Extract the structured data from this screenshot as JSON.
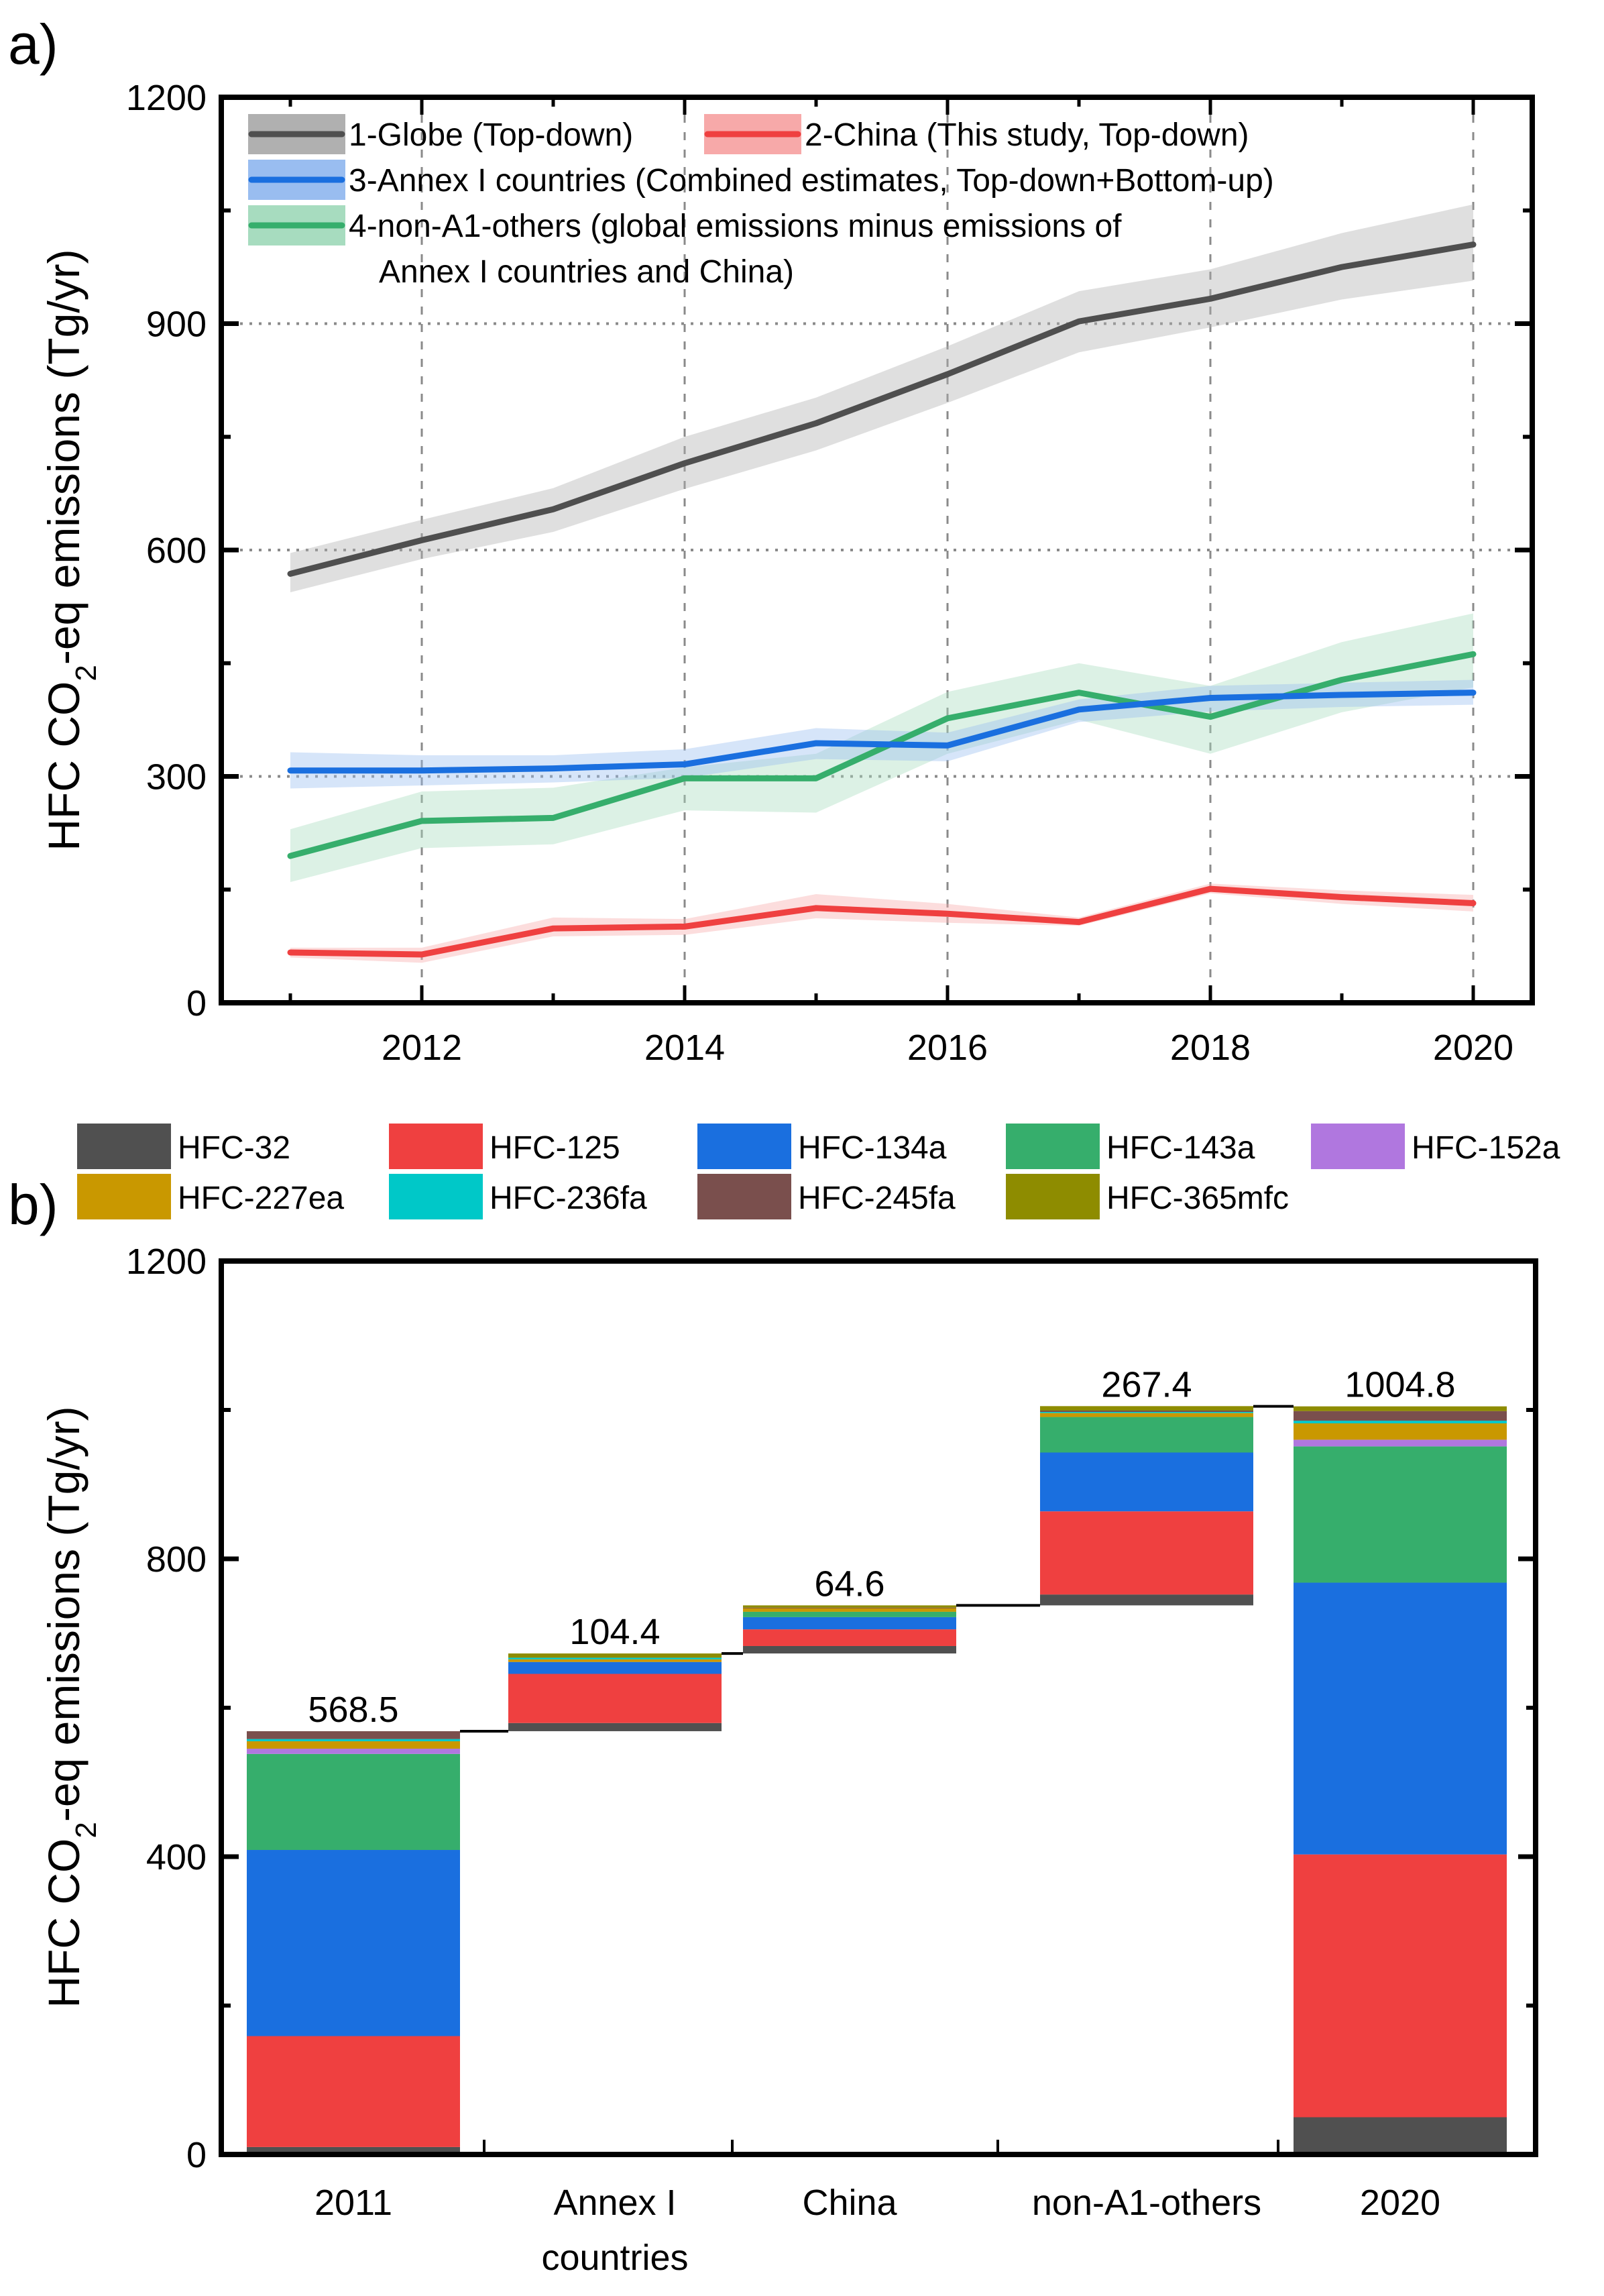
{
  "figure": {
    "panel_a_label": "a)",
    "panel_b_label": "b)"
  },
  "chart_data": [
    {
      "id": "panel_a",
      "type": "line",
      "title": "",
      "xlabel": "",
      "ylabel_parts": [
        "HFC CO",
        "2",
        "-eq emissions (Tg/yr)"
      ],
      "ylabel": "HFC CO2-eq emissions (Tg/yr)",
      "xlim": [
        2011,
        2020
      ],
      "ylim": [
        0,
        1200
      ],
      "x_ticks": [
        2012,
        2014,
        2016,
        2018,
        2020
      ],
      "x_minor_ticks": [
        2011,
        2012,
        2013,
        2014,
        2015,
        2016,
        2017,
        2018,
        2019,
        2020
      ],
      "y_ticks": [
        0,
        300,
        600,
        900,
        1200
      ],
      "y_minor_ticks": [
        150,
        450,
        750,
        1050
      ],
      "grid": true,
      "legend_position": "top-left",
      "x": [
        2011,
        2012,
        2013,
        2014,
        2015,
        2016,
        2017,
        2018,
        2019,
        2020
      ],
      "series": [
        {
          "name": "1-Globe (Top-down)",
          "color": "#4f4f4f",
          "band_color": "#b0b0b0",
          "values": [
            568.5,
            613,
            654,
            715,
            768,
            833,
            903,
            933,
            975,
            1004.8
          ],
          "lower": [
            544,
            588,
            624,
            681,
            732,
            795,
            862,
            895,
            932,
            957
          ],
          "upper": [
            596,
            640,
            682,
            750,
            802,
            870,
            943,
            972,
            1020,
            1058
          ]
        },
        {
          "name": "2-China (This study, Top-down)",
          "color": "#ef4040",
          "band_color": "#f7a9a9",
          "values": [
            66.7,
            64,
            98.5,
            101,
            125.5,
            118,
            107,
            151,
            140,
            132
          ],
          "lower": [
            60,
            53,
            88,
            90,
            112,
            106,
            102,
            145,
            131,
            121
          ],
          "upper": [
            73,
            73,
            113,
            111,
            144,
            131,
            113,
            158,
            149,
            143
          ]
        },
        {
          "name": "3-Annex I countries (Combined estimates, Top-down+Bottom-up)",
          "color": "#1a6fdf",
          "band_color": "#99bdf0",
          "values": [
            307.8,
            307.8,
            310.6,
            316,
            344,
            341,
            388.6,
            404,
            408,
            411
          ],
          "lower": [
            284,
            288,
            292,
            298,
            323,
            320,
            372,
            386,
            392,
            395
          ],
          "upper": [
            332,
            328,
            328,
            336,
            364,
            358,
            402,
            420,
            424,
            428
          ]
        },
        {
          "name": "4-non-A1-others (global emissions minus emissions of Annex I countries and China)",
          "name_line1": "4-non-A1-others (global emissions minus emissions of",
          "name_line2": "Annex I countries and China)",
          "color": "#36ae6c",
          "band_color": "#a7dcbf",
          "values": [
            194.6,
            241,
            245,
            297.5,
            297.5,
            377,
            411,
            379,
            428,
            462
          ],
          "lower": [
            160,
            205,
            210,
            255,
            252,
            330,
            375,
            330,
            385,
            418
          ],
          "upper": [
            230,
            280,
            285,
            312,
            330,
            412,
            450,
            420,
            478,
            516
          ]
        }
      ]
    },
    {
      "id": "panel_b",
      "type": "bar",
      "subtype": "stacked-waterfall",
      "title": "",
      "xlabel": "",
      "ylabel_parts": [
        "HFC CO",
        "2",
        "-eq emissions (Tg/yr)"
      ],
      "ylabel": "HFC CO2-eq emissions (Tg/yr)",
      "ylim": [
        0,
        1200
      ],
      "y_ticks": [
        0,
        400,
        800,
        1200
      ],
      "y_minor_ticks": [
        200,
        600,
        1000
      ],
      "grid": false,
      "legend_position": "top (above plot)",
      "categories": [
        "2011",
        "Annex I countries",
        "China",
        "non-A1-others",
        "2020"
      ],
      "category_lines": [
        [
          "2011"
        ],
        [
          "Annex I",
          "countries"
        ],
        [
          "China"
        ],
        [
          "non-A1-others"
        ],
        [
          "2020"
        ]
      ],
      "bar_labels": [
        "568.5",
        "104.4",
        "64.6",
        "267.4",
        "1004.8"
      ],
      "bar_bases": [
        0,
        568.5,
        672.9,
        737.5,
        0
      ],
      "totals": [
        568.5,
        104.4,
        64.6,
        267.4,
        1004.8
      ],
      "species": [
        {
          "name": "HFC-32",
          "color": "#505050"
        },
        {
          "name": "HFC-125",
          "color": "#ef4040"
        },
        {
          "name": "HFC-134a",
          "color": "#1a6fdf"
        },
        {
          "name": "HFC-143a",
          "color": "#36ae6c"
        },
        {
          "name": "HFC-152a",
          "color": "#b077df"
        },
        {
          "name": "HFC-227ea",
          "color": "#c99800"
        },
        {
          "name": "HFC-236fa",
          "color": "#00c8c8"
        },
        {
          "name": "HFC-245fa",
          "color": "#7a4f4d"
        },
        {
          "name": "HFC-365mfc",
          "color": "#8e8c00"
        }
      ],
      "series": [
        {
          "name": "HFC-32",
          "values": [
            10,
            11,
            10,
            14.6,
            50
          ]
        },
        {
          "name": "HFC-125",
          "values": [
            149,
            66,
            22.4,
            111.7,
            353
          ]
        },
        {
          "name": "HFC-134a",
          "values": [
            250,
            16,
            16.4,
            79,
            365
          ]
        },
        {
          "name": "HFC-143a",
          "values": [
            129,
            0,
            7.2,
            47.7,
            183
          ]
        },
        {
          "name": "HFC-152a",
          "values": [
            7,
            0,
            0,
            0,
            9
          ]
        },
        {
          "name": "HFC-227ea",
          "values": [
            10,
            3.5,
            5,
            5.3,
            22
          ]
        },
        {
          "name": "HFC-236fa",
          "values": [
            3,
            2.2,
            0,
            1.5,
            3.5
          ]
        },
        {
          "name": "HFC-245fa",
          "values": [
            10.5,
            0,
            0.6,
            1.8,
            13
          ]
        },
        {
          "name": "HFC-365mfc",
          "values": [
            0,
            5.7,
            3,
            6,
            6.3
          ]
        }
      ]
    }
  ]
}
